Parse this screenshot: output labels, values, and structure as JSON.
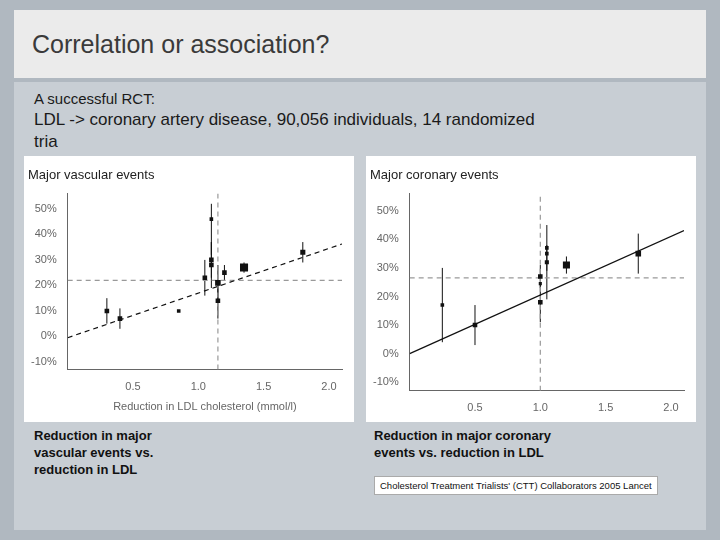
{
  "title": "Correlation or association?",
  "subtitle": "A successful RCT:",
  "annotations": [
    "LDL -> coronary artery disease, 90,056 individuals, 14 randomized",
    "tria",
    "Reduction in major\nvascular events vs.\nreduction in LDL",
    "Reduction in major coronary\nevents vs. reduction in LDL",
    "Cholesterol Treatment Trialists' (CTT) Collaborators 2005 Lancet"
  ],
  "chart_data": [
    {
      "type": "scatter",
      "title": "Major vascular events",
      "xlabel": "Reduction in LDL cholesterol (mmol/l)",
      "xlim": [
        0.0,
        2.1
      ],
      "ylim": [
        -0.13,
        0.56
      ],
      "xticks": [
        0.5,
        {
          "value": 1.0,
          "label": "1.0"
        },
        1.5,
        {
          "value": 2.0,
          "label": "2.0"
        }
      ],
      "yticks": [
        {
          "value": -0.1,
          "label": "-10%"
        },
        {
          "value": 0.0,
          "label": "0%"
        },
        {
          "value": 0.1,
          "label": "10%"
        },
        {
          "value": 0.2,
          "label": "20%"
        },
        {
          "value": 0.3,
          "label": "30%"
        },
        {
          "value": 0.4,
          "label": "40%"
        },
        {
          "value": 0.5,
          "label": "50%"
        }
      ],
      "grid": false,
      "series": [
        {
          "type": "line",
          "line_style": "dashed",
          "color": "#111111",
          "x": [
            0.0,
            2.1
          ],
          "values": [
            -0.005,
            0.3625
          ]
        },
        {
          "type": "line",
          "line_style": "dashed",
          "color": "#999999",
          "x": [
            0.0,
            2.1
          ],
          "values": [
            0.22,
            0.22
          ]
        },
        {
          "type": "line",
          "line_style": "dashed",
          "color": "#999999",
          "x": [
            1.15,
            1.15
          ],
          "values": [
            -0.13,
            0.56
          ]
        },
        {
          "type": "scatter",
          "marker": "square",
          "color": "#111111",
          "x": [
            0.3,
            0.4,
            0.85,
            1.05,
            1.1,
            1.1,
            1.1,
            1.15,
            1.15,
            1.2,
            1.35,
            1.8
          ],
          "values": [
            0.1,
            0.07,
            0.1,
            0.23,
            0.3,
            0.28,
            0.46,
            0.21,
            0.14,
            0.25,
            0.27,
            0.33
          ],
          "error_low": [
            0.05,
            0.04,
            0.0,
            0.07,
            0.07,
            0.09,
            0.14,
            0.07,
            0.07,
            0.03,
            0.02,
            0.04
          ],
          "error_high": [
            0.05,
            0.04,
            0.0,
            0.07,
            0.07,
            0.09,
            0.06,
            0.07,
            0.07,
            0.03,
            0.02,
            0.04
          ],
          "sizes": [
            5,
            5,
            3,
            5,
            5,
            5,
            3,
            7,
            5,
            5,
            12,
            6
          ]
        }
      ]
    },
    {
      "type": "scatter",
      "title": "Major coronary events",
      "xlim": [
        0.0,
        2.1
      ],
      "ylim": [
        -0.13,
        0.56
      ],
      "xticks": [
        0.5,
        {
          "value": 1.0,
          "label": "1.0"
        },
        1.5,
        {
          "value": 2.0,
          "label": "2.0"
        }
      ],
      "yticks": [
        {
          "value": -0.1,
          "label": "-10%"
        },
        {
          "value": 0.0,
          "label": "0%"
        },
        {
          "value": 0.1,
          "label": "10%"
        },
        {
          "value": 0.2,
          "label": "20%"
        },
        {
          "value": 0.3,
          "label": "30%"
        },
        {
          "value": 0.4,
          "label": "40%"
        },
        {
          "value": 0.5,
          "label": "50%"
        }
      ],
      "grid": false,
      "series": [
        {
          "type": "line",
          "line_style": "solid",
          "color": "#111111",
          "x": [
            0.0,
            2.1
          ],
          "values": [
            0.0,
            0.4305
          ]
        },
        {
          "type": "line",
          "line_style": "dashed",
          "color": "#999999",
          "x": [
            0.0,
            2.1
          ],
          "values": [
            0.265,
            0.265
          ]
        },
        {
          "type": "line",
          "line_style": "dashed",
          "color": "#999999",
          "x": [
            1.0,
            1.0
          ],
          "values": [
            -0.13,
            0.56
          ]
        },
        {
          "type": "scatter",
          "marker": "square",
          "color": "#111111",
          "x": [
            0.25,
            0.5,
            1.0,
            1.0,
            1.05,
            1.05,
            1.05,
            1.0,
            1.2,
            1.75
          ],
          "values": [
            0.17,
            0.1,
            0.27,
            0.18,
            0.32,
            0.37,
            0.35,
            0.245,
            0.31,
            0.35
          ],
          "error_low": [
            0.13,
            0.07,
            0.04,
            0.07,
            0.13,
            0.08,
            0.0,
            0.0,
            0.03,
            0.07
          ],
          "error_high": [
            0.13,
            0.07,
            0.04,
            0.07,
            0.06,
            0.08,
            0.0,
            0.0,
            0.03,
            0.07
          ],
          "sizes": [
            3,
            5,
            5,
            5,
            4,
            3,
            3,
            2,
            10,
            7
          ]
        }
      ]
    }
  ]
}
